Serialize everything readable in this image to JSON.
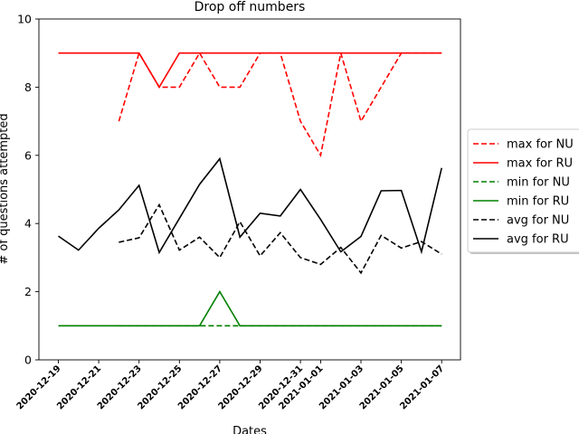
{
  "chart_data": {
    "type": "line",
    "title": "Drop off numbers",
    "xlabel": "Dates",
    "ylabel": "# of questions attempted",
    "ylim": [
      0,
      10
    ],
    "yticks": [
      "0",
      "2",
      "4",
      "6",
      "8",
      "10"
    ],
    "x": [
      "2020-12-19",
      "2020-12-20",
      "2020-12-21",
      "2020-12-22",
      "2020-12-23",
      "2020-12-24",
      "2020-12-25",
      "2020-12-26",
      "2020-12-27",
      "2020-12-28",
      "2020-12-29",
      "2020-12-30",
      "2020-12-31",
      "2021-01-01",
      "2021-01-02",
      "2021-01-03",
      "2021-01-04",
      "2021-01-05",
      "2021-01-06",
      "2021-01-07"
    ],
    "xticks": [
      "2020-12-19",
      "2020-12-21",
      "2020-12-23",
      "2020-12-25",
      "2020-12-27",
      "2020-12-29",
      "2020-12-31",
      "2021-01-01",
      "2021-01-03",
      "2021-01-05",
      "2021-01-07"
    ],
    "legend_position": "outside-right",
    "series": [
      {
        "name": "max for NU",
        "color": "#ff0000",
        "dash": "dashed",
        "values": [
          null,
          null,
          null,
          7,
          9,
          8,
          8,
          9,
          8,
          8,
          9,
          9,
          7,
          6,
          9,
          7,
          8,
          9,
          9,
          9
        ]
      },
      {
        "name": "max for RU",
        "color": "#ff0000",
        "dash": "solid",
        "values": [
          9,
          9,
          9,
          9,
          9,
          8,
          9,
          9,
          9,
          9,
          9,
          9,
          9,
          9,
          9,
          9,
          9,
          9,
          9,
          9
        ]
      },
      {
        "name": "min for NU",
        "color": "#008000",
        "dash": "dashed",
        "values": [
          null,
          null,
          null,
          1,
          1,
          1,
          1,
          1,
          1,
          1,
          1,
          1,
          1,
          1,
          1,
          1,
          1,
          1,
          1,
          1
        ]
      },
      {
        "name": "min for RU",
        "color": "#008000",
        "dash": "solid",
        "values": [
          1,
          1,
          1,
          1,
          1,
          1,
          1,
          1,
          2,
          1,
          1,
          1,
          1,
          1,
          1,
          1,
          1,
          1,
          1,
          1
        ]
      },
      {
        "name": "avg for NU",
        "color": "#000000",
        "dash": "dashed",
        "values": [
          null,
          null,
          null,
          3.45,
          3.58,
          4.55,
          3.22,
          3.6,
          3.0,
          4.05,
          3.05,
          3.73,
          3.0,
          2.8,
          3.3,
          2.55,
          3.65,
          3.28,
          3.47,
          3.1
        ]
      },
      {
        "name": "avg for RU",
        "color": "#000000",
        "dash": "solid",
        "values": [
          3.63,
          3.22,
          3.86,
          4.4,
          5.12,
          3.15,
          4.15,
          5.15,
          5.9,
          3.6,
          4.3,
          4.22,
          5.0,
          4.12,
          3.17,
          3.62,
          4.96,
          4.97,
          3.17,
          5.63
        ]
      }
    ]
  }
}
